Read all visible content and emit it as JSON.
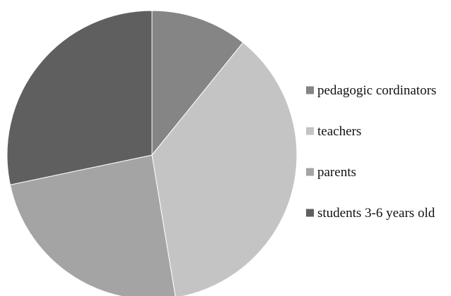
{
  "chart_data": {
    "type": "pie",
    "title": "",
    "legend_position": "right",
    "start_angle_deg": 0,
    "direction": "clockwise",
    "slices": [
      {
        "label": "pedagogic cordinators",
        "value": 10.8,
        "color": "#858585"
      },
      {
        "label": "teachers",
        "value": 36.6,
        "color": "#c4c4c4"
      },
      {
        "label": "parents",
        "value": 24.3,
        "color": "#a4a4a4"
      },
      {
        "label": "students 3-6 years old",
        "value": 28.3,
        "color": "#5f5f5f"
      }
    ]
  }
}
